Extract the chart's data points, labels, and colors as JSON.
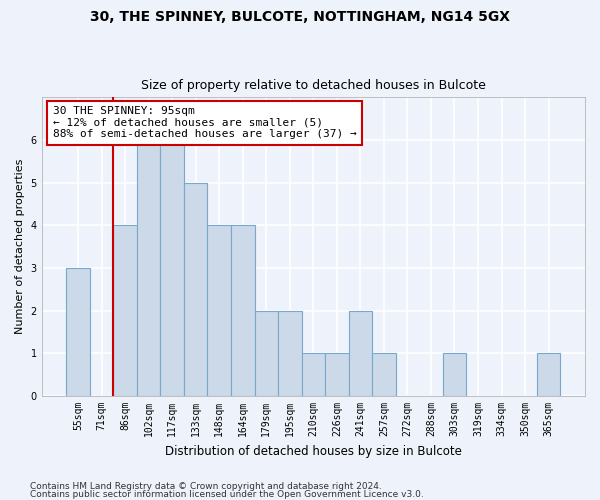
{
  "title1": "30, THE SPINNEY, BULCOTE, NOTTINGHAM, NG14 5GX",
  "title2": "Size of property relative to detached houses in Bulcote",
  "xlabel": "Distribution of detached houses by size in Bulcote",
  "ylabel": "Number of detached properties",
  "categories": [
    "55sqm",
    "71sqm",
    "86sqm",
    "102sqm",
    "117sqm",
    "133sqm",
    "148sqm",
    "164sqm",
    "179sqm",
    "195sqm",
    "210sqm",
    "226sqm",
    "241sqm",
    "257sqm",
    "272sqm",
    "288sqm",
    "303sqm",
    "319sqm",
    "334sqm",
    "350sqm",
    "365sqm"
  ],
  "values": [
    3,
    0,
    4,
    6,
    6,
    5,
    4,
    4,
    2,
    2,
    1,
    1,
    2,
    1,
    0,
    0,
    1,
    0,
    0,
    0,
    1
  ],
  "bar_color": "#ccd9e8",
  "bar_edge_color": "#7aa8cc",
  "ylim": [
    0,
    7
  ],
  "yticks": [
    0,
    1,
    2,
    3,
    4,
    5,
    6,
    7
  ],
  "vline_color": "#cc0000",
  "vline_x": 1.5,
  "annotation_text": "30 THE SPINNEY: 95sqm\n← 12% of detached houses are smaller (5)\n88% of semi-detached houses are larger (37) →",
  "annotation_box_color": "#ffffff",
  "annotation_box_edge_color": "#cc0000",
  "footer1": "Contains HM Land Registry data © Crown copyright and database right 2024.",
  "footer2": "Contains public sector information licensed under the Open Government Licence v3.0.",
  "background_color": "#eef2fa",
  "plot_bg_color": "#eef2fa",
  "grid_color": "#ffffff",
  "title1_fontsize": 10,
  "title2_fontsize": 9,
  "xlabel_fontsize": 8.5,
  "ylabel_fontsize": 8,
  "tick_fontsize": 7,
  "footer_fontsize": 6.5,
  "annotation_fontsize": 8
}
